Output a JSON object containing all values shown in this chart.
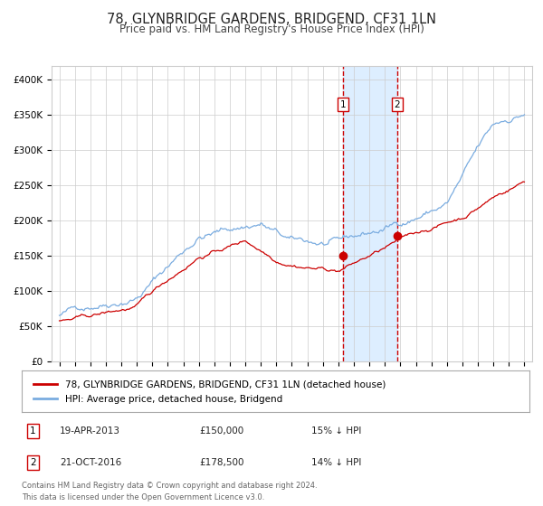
{
  "title": "78, GLYNBRIDGE GARDENS, BRIDGEND, CF31 1LN",
  "subtitle": "Price paid vs. HM Land Registry's House Price Index (HPI)",
  "title_fontsize": 10.5,
  "subtitle_fontsize": 8.5,
  "ylim": [
    0,
    420000
  ],
  "yticks": [
    0,
    50000,
    100000,
    150000,
    200000,
    250000,
    300000,
    350000,
    400000
  ],
  "ytick_labels": [
    "£0",
    "£50K",
    "£100K",
    "£150K",
    "£200K",
    "£250K",
    "£300K",
    "£350K",
    "£400K"
  ],
  "xlim_start": 1994.5,
  "xlim_end": 2025.5,
  "red_line_color": "#cc0000",
  "blue_line_color": "#7aace0",
  "event1_x": 2013.3,
  "event1_y": 150000,
  "event1_label": "1",
  "event2_x": 2016.8,
  "event2_y": 178500,
  "event2_label": "2",
  "shade_color": "#ddeeff",
  "dashed_color": "#cc0000",
  "legend_label_red": "78, GLYNBRIDGE GARDENS, BRIDGEND, CF31 1LN (detached house)",
  "legend_label_blue": "HPI: Average price, detached house, Bridgend",
  "table_row1": [
    "1",
    "19-APR-2013",
    "£150,000",
    "15% ↓ HPI"
  ],
  "table_row2": [
    "2",
    "21-OCT-2016",
    "£178,500",
    "14% ↓ HPI"
  ],
  "footer": "Contains HM Land Registry data © Crown copyright and database right 2024.\nThis data is licensed under the Open Government Licence v3.0.",
  "background_color": "#ffffff",
  "grid_color": "#cccccc"
}
